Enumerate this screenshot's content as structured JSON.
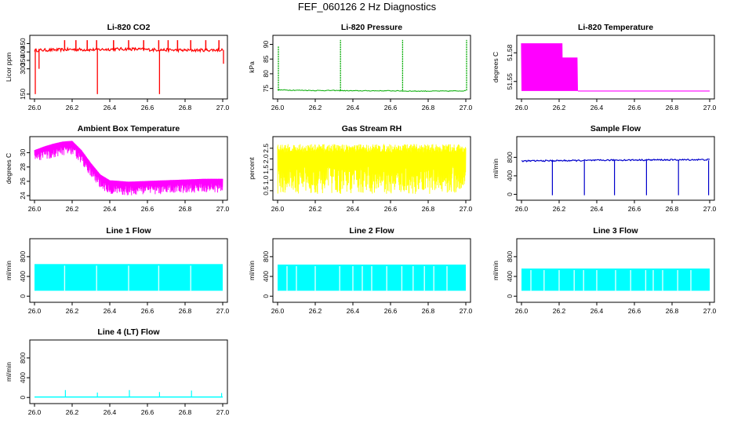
{
  "title": "FEF_060126  2 Hz Diagnostics",
  "chart_data": [
    {
      "type": "line",
      "title": "Li-820 CO2",
      "ylabel": "Licor ppm",
      "color": "#ff0000",
      "xlim": [
        26.0,
        27.0
      ],
      "ylim": [
        140,
        480
      ],
      "xticks": [
        "26.0",
        "26.2",
        "26.4",
        "26.6",
        "26.8",
        "27.0"
      ],
      "yticks": [
        "150",
        "300",
        "350",
        "400",
        "450"
      ],
      "x": [
        26.0,
        26.1,
        26.2,
        26.3,
        26.4,
        26.5,
        26.6,
        26.7,
        26.8,
        26.9,
        27.0
      ],
      "values": [
        410,
        412,
        415,
        413,
        416,
        418,
        414,
        412,
        410,
        411,
        412
      ]
    },
    {
      "type": "line",
      "title": "Li-820 Pressure",
      "ylabel": "kPa",
      "color": "#00aa00",
      "xlim": [
        26.0,
        27.0
      ],
      "ylim": [
        72.5,
        92.0
      ],
      "xticks": [
        "26.0",
        "26.2",
        "26.4",
        "26.6",
        "26.8",
        "27.0"
      ],
      "yticks": [
        "75",
        "80",
        "85",
        "90"
      ],
      "x": [
        26.0,
        26.1,
        26.2,
        26.3,
        26.4,
        26.5,
        26.6,
        26.7,
        26.8,
        26.9,
        27.0
      ],
      "values": [
        74.5,
        74.4,
        74.3,
        74.3,
        74.2,
        74.2,
        74.2,
        74.1,
        74.1,
        74.1,
        74.2
      ]
    },
    {
      "type": "line",
      "title": "Li-820 Temperature",
      "ylabel": "degrees C",
      "color": "#ff00ff",
      "xlim": [
        26.0,
        27.0
      ],
      "ylim": [
        51.535,
        51.595
      ],
      "xticks": [
        "26.0",
        "26.2",
        "26.4",
        "26.6",
        "26.8",
        "27.0"
      ],
      "yticks": [
        "51.55",
        "51.58"
      ],
      "x": [
        26.0,
        26.1,
        26.2,
        26.3,
        26.4,
        26.5,
        26.6,
        26.7,
        26.8,
        26.9,
        27.0
      ],
      "values": [
        51.58,
        51.58,
        51.57,
        51.54,
        51.54,
        51.54,
        51.54,
        51.54,
        51.54,
        51.54,
        51.54
      ]
    },
    {
      "type": "line",
      "title": "Ambient Box Temperature",
      "ylabel": "degrees C",
      "color": "#ff00ff",
      "xlim": [
        26.0,
        27.0
      ],
      "ylim": [
        23.8,
        31.8
      ],
      "xticks": [
        "26.0",
        "26.2",
        "26.4",
        "26.6",
        "26.8",
        "27.0"
      ],
      "yticks": [
        "24",
        "26",
        "28",
        "30"
      ],
      "x": [
        26.0,
        26.05,
        26.1,
        26.15,
        26.2,
        26.25,
        26.3,
        26.35,
        26.4,
        26.5,
        26.6,
        26.7,
        26.8,
        26.9,
        27.0
      ],
      "values": [
        30.0,
        30.5,
        30.9,
        31.2,
        31.3,
        30.0,
        28.2,
        26.6,
        25.8,
        25.6,
        25.7,
        25.8,
        25.9,
        26.0,
        26.0
      ]
    },
    {
      "type": "line",
      "title": "Gas Stream RH",
      "ylabel": "percent",
      "color": "#ffff00",
      "xlim": [
        26.0,
        27.0
      ],
      "ylim": [
        0.2,
        2.9
      ],
      "xticks": [
        "26.0",
        "26.2",
        "26.4",
        "26.6",
        "26.8",
        "27.0"
      ],
      "yticks": [
        "0.5",
        "1.0",
        "1.5",
        "2.0",
        "2.5"
      ],
      "x": [
        26.0,
        26.1,
        26.2,
        26.3,
        26.4,
        26.5,
        26.6,
        26.7,
        26.8,
        26.9,
        27.0
      ],
      "values": [
        1.8,
        1.8,
        1.9,
        1.8,
        1.9,
        1.9,
        1.9,
        1.9,
        1.9,
        1.9,
        1.9
      ]
    },
    {
      "type": "line",
      "title": "Sample Flow",
      "ylabel": "ml/min",
      "color": "#0000cc",
      "xlim": [
        26.0,
        27.0
      ],
      "ylim": [
        -60,
        1180
      ],
      "xticks": [
        "26.0",
        "26.2",
        "26.4",
        "26.6",
        "26.8",
        "27.0"
      ],
      "yticks": [
        "0",
        "400",
        "800"
      ],
      "x": [
        26.0,
        26.1,
        26.2,
        26.3,
        26.4,
        26.5,
        26.6,
        26.7,
        26.8,
        26.9,
        27.0
      ],
      "values": [
        720,
        725,
        728,
        730,
        735,
        740,
        742,
        745,
        745,
        748,
        750
      ]
    },
    {
      "type": "line",
      "title": "Line 1 Flow",
      "ylabel": "ml/min",
      "color": "#00ffff",
      "xlim": [
        26.0,
        27.0
      ],
      "ylim": [
        -60,
        1100
      ],
      "xticks": [
        "26.0",
        "26.2",
        "26.4",
        "26.6",
        "26.8",
        "27.0"
      ],
      "yticks": [
        "0",
        "400",
        "800"
      ],
      "x": [
        26.0,
        26.5,
        27.0
      ],
      "values": [
        640,
        650,
        650
      ]
    },
    {
      "type": "line",
      "title": "Line 2 Flow",
      "ylabel": "ml/min",
      "color": "#00ffff",
      "xlim": [
        26.0,
        27.0
      ],
      "ylim": [
        -60,
        1100
      ],
      "xticks": [
        "26.0",
        "26.2",
        "26.4",
        "26.6",
        "26.8",
        "27.0"
      ],
      "yticks": [
        "0",
        "400",
        "800"
      ],
      "x": [
        26.0,
        26.5,
        27.0
      ],
      "values": [
        630,
        640,
        650
      ]
    },
    {
      "type": "line",
      "title": "Line 3 Flow",
      "ylabel": "ml/min",
      "color": "#00ffff",
      "xlim": [
        26.0,
        27.0
      ],
      "ylim": [
        -60,
        1100
      ],
      "xticks": [
        "26.0",
        "26.2",
        "26.4",
        "26.6",
        "26.8",
        "27.0"
      ],
      "yticks": [
        "0",
        "400",
        "800"
      ],
      "x": [
        26.0,
        26.5,
        27.0
      ],
      "values": [
        550,
        560,
        560
      ]
    },
    {
      "type": "line",
      "title": "Line 4 (LT) Flow",
      "ylabel": "ml/min",
      "color": "#00ffff",
      "xlim": [
        26.0,
        27.0
      ],
      "ylim": [
        -60,
        1100
      ],
      "xticks": [
        "26.0",
        "26.2",
        "26.4",
        "26.6",
        "26.8",
        "27.0"
      ],
      "yticks": [
        "0",
        "400",
        "800"
      ],
      "x": [
        26.0,
        26.16,
        26.33,
        26.5,
        26.66,
        26.83,
        27.0
      ],
      "values": [
        10,
        10,
        10,
        10,
        10,
        10,
        10
      ],
      "spikes": [
        [
          26.16,
          150
        ],
        [
          26.33,
          100
        ],
        [
          26.5,
          150
        ],
        [
          26.66,
          110
        ],
        [
          26.83,
          140
        ],
        [
          26.99,
          90
        ]
      ]
    }
  ]
}
